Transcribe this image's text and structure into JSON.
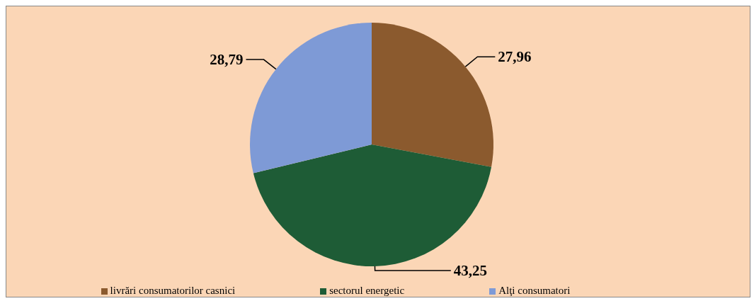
{
  "chart_data": {
    "type": "pie",
    "categories": [
      "livrări consumatorilor casnici",
      "sectorul energetic",
      "Alţi consumatori"
    ],
    "values": [
      27.96,
      43.25,
      28.79
    ],
    "value_labels": [
      "27,96",
      "43,25",
      "28,79"
    ],
    "colors": [
      "#8b5a2e",
      "#1e5c36",
      "#7e9ad6"
    ],
    "legend": "bottom"
  }
}
